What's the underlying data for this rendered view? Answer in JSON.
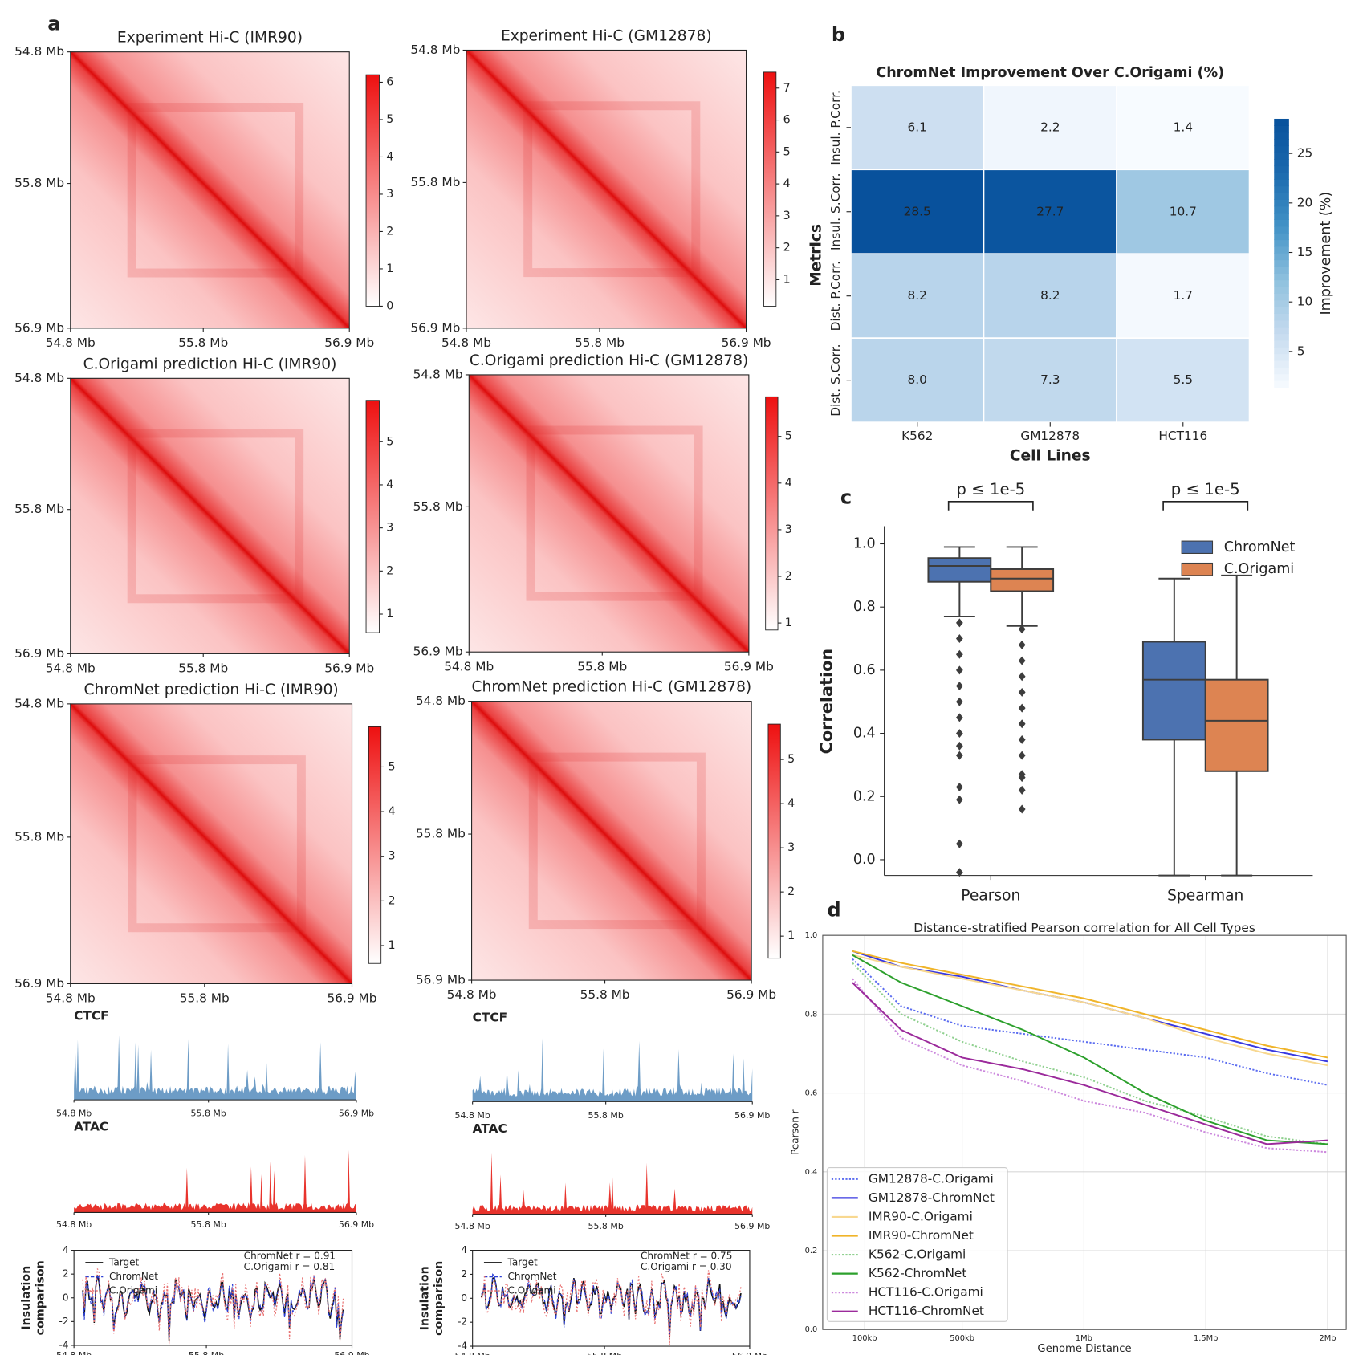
{
  "panel_labels": [
    "a",
    "b",
    "c",
    "d"
  ],
  "hic": {
    "lim": [
      54.8,
      56.9
    ],
    "ticks": [
      {
        "value": 54.8,
        "label": "54.8 Mb"
      },
      {
        "value": 55.8,
        "label": "55.8 Mb"
      },
      {
        "value": 56.9,
        "label": "56.9 Mb"
      }
    ],
    "panels": [
      {
        "title": "Experiment Hi-C (IMR90)",
        "cbar_lim": [
          0,
          6.2
        ],
        "cbar_ticks": [
          0,
          1,
          2,
          3,
          4,
          5,
          6
        ]
      },
      {
        "title": "Experiment Hi-C (GM12878)",
        "cbar_lim": [
          0.17,
          7.5
        ],
        "cbar_ticks": [
          1,
          2,
          3,
          4,
          5,
          6,
          7
        ]
      },
      {
        "title": "C.Origami prediction Hi-C (IMR90)",
        "cbar_lim": [
          0.57,
          5.96
        ],
        "cbar_ticks": [
          1,
          2,
          3,
          4,
          5
        ]
      },
      {
        "title": "C.Origami prediction Hi-C (GM12878)",
        "cbar_lim": [
          0.85,
          5.85
        ],
        "cbar_ticks": [
          1,
          2,
          3,
          4,
          5
        ]
      },
      {
        "title": "ChromNet prediction Hi-C (IMR90)",
        "cbar_lim": [
          0.6,
          5.9
        ],
        "cbar_ticks": [
          1,
          2,
          3,
          4,
          5
        ]
      },
      {
        "title": "ChromNet prediction Hi-C (GM12878)",
        "cbar_lim": [
          0.5,
          5.8
        ],
        "cbar_ticks": [
          1,
          2,
          3,
          4,
          5
        ]
      }
    ]
  },
  "tracks": {
    "names": [
      "CTCF",
      "ATAC"
    ],
    "colors": [
      "#6d9cc6",
      "#e8332c"
    ]
  },
  "insulation": {
    "ylabel": [
      "Insulation",
      "comparison"
    ],
    "ylim": [
      -4,
      4
    ],
    "yticks": [
      -4,
      -2,
      0,
      2,
      4
    ],
    "legend": [
      "Target",
      "ChromNet",
      "C.Origami"
    ],
    "colors": [
      "#111111",
      "#2b3fd6",
      "#e87070"
    ],
    "panels": [
      {
        "annotations": [
          "ChromNet r = 0.91",
          "C.Origami r = 0.81"
        ]
      },
      {
        "annotations": [
          "ChromNet r = 0.75",
          "C.Origami r = 0.30"
        ]
      }
    ]
  },
  "chart_data": [
    {
      "type": "heatmap",
      "title": "ChromNet Improvement Over C.Origami (%)",
      "xlabel": "Cell Lines",
      "ylabel": "Metrics",
      "colorbar_label": "Improvement (%)",
      "categories": [
        "K562",
        "GM12878",
        "HCT116"
      ],
      "rows": [
        "Insul. P.Corr.",
        "Insul. S.Corr.",
        "Dist. P.Corr.",
        "Dist. S.Corr."
      ],
      "values": [
        [
          6.1,
          2.2,
          1.4
        ],
        [
          28.5,
          27.7,
          10.7
        ],
        [
          8.2,
          8.2,
          1.7
        ],
        [
          8.0,
          7.3,
          5.5
        ]
      ],
      "value_labels": [
        [
          "6.1",
          "2.2",
          "1.4"
        ],
        [
          "28.5",
          "27.7",
          "10.7"
        ],
        [
          "8.2",
          "8.2",
          "1.7"
        ],
        [
          "8.0",
          "7.3",
          "5.5"
        ]
      ],
      "colormap": "Blues",
      "clim": [
        1.4,
        28.5
      ],
      "cticks": [
        5,
        10,
        15,
        20,
        25
      ]
    },
    {
      "type": "box",
      "ylabel": "Correlation",
      "categories": [
        "Pearson",
        "Spearman"
      ],
      "annotations": [
        "p ≤ 1e-5",
        "p ≤ 1e-5"
      ],
      "ylim": [
        -0.05,
        1.056
      ],
      "yticks": [
        {
          "value": 0,
          "label": "0.0"
        },
        0.2,
        0.4,
        0.6,
        0.8,
        {
          "value": 1,
          "label": "1.0"
        }
      ],
      "legend": "upper right",
      "series": [
        {
          "name": "ChromNet",
          "color": "#4c72b0",
          "boxes": [
            {
              "whislo": 0.77,
              "q1": 0.88,
              "med": 0.93,
              "q3": 0.955,
              "whishi": 0.99,
              "fliers": [
                0.75,
                0.7,
                0.65,
                0.6,
                0.55,
                0.5,
                0.45,
                0.4,
                0.36,
                0.33,
                0.23,
                0.19,
                0.05,
                -0.04
              ]
            },
            {
              "whislo": -0.05,
              "q1": 0.38,
              "med": 0.57,
              "q3": 0.69,
              "whishi": 0.89,
              "fliers": []
            }
          ]
        },
        {
          "name": "C.Origami",
          "color": "#dd8452",
          "boxes": [
            {
              "whislo": 0.74,
              "q1": 0.85,
              "med": 0.89,
              "q3": 0.92,
              "whishi": 0.99,
              "fliers": [
                0.73,
                0.68,
                0.63,
                0.58,
                0.53,
                0.48,
                0.43,
                0.38,
                0.33,
                0.27,
                0.26,
                0.22,
                0.16
              ]
            },
            {
              "whislo": -0.05,
              "q1": 0.28,
              "med": 0.44,
              "q3": 0.57,
              "whishi": 0.9,
              "fliers": []
            }
          ]
        }
      ]
    },
    {
      "type": "line",
      "title": "Distance-stratified Pearson correlation for All Cell Types",
      "xlabel": "Genome Distance",
      "ylabel": "Pearson r",
      "x": [
        0.05,
        0.25,
        0.5,
        0.75,
        1.0,
        1.25,
        1.5,
        1.75,
        2.0
      ],
      "xlim": [
        -0.072,
        2.076
      ],
      "xticks": [
        {
          "value": 0.1,
          "label": "100kb"
        },
        {
          "value": 0.5,
          "label": "500kb"
        },
        {
          "value": 1,
          "label": "1Mb"
        },
        {
          "value": 1.5,
          "label": "1.5Mb"
        },
        {
          "value": 2,
          "label": "2Mb"
        }
      ],
      "ylim": [
        0,
        1
      ],
      "yticks": [
        {
          "value": 0,
          "label": "0.0"
        },
        0.2,
        0.4,
        0.6,
        0.8,
        {
          "value": 1,
          "label": "1.0"
        }
      ],
      "grid": true,
      "legend": "lower left",
      "series": [
        {
          "name": "GM12878-C.Origami",
          "color": "#5b6cf0",
          "style": "dotted",
          "values": [
            0.94,
            0.82,
            0.77,
            0.75,
            0.73,
            0.71,
            0.69,
            0.65,
            0.62
          ]
        },
        {
          "name": "GM12878-ChromNet",
          "color": "#3838e0",
          "style": "solid",
          "values": [
            0.96,
            0.92,
            0.895,
            0.86,
            0.83,
            0.79,
            0.75,
            0.71,
            0.68
          ]
        },
        {
          "name": "IMR90-C.Origami",
          "color": "#f8d890",
          "style": "solid",
          "values": [
            0.95,
            0.92,
            0.89,
            0.86,
            0.83,
            0.79,
            0.74,
            0.7,
            0.67
          ]
        },
        {
          "name": "IMR90-ChromNet",
          "color": "#f0b429",
          "style": "solid",
          "values": [
            0.96,
            0.93,
            0.9,
            0.87,
            0.84,
            0.8,
            0.76,
            0.72,
            0.69
          ]
        },
        {
          "name": "K562-C.Origami",
          "color": "#8fd08f",
          "style": "dotted",
          "values": [
            0.93,
            0.8,
            0.73,
            0.68,
            0.64,
            0.58,
            0.54,
            0.49,
            0.47
          ]
        },
        {
          "name": "K562-ChromNet",
          "color": "#2ca02c",
          "style": "solid",
          "values": [
            0.95,
            0.88,
            0.82,
            0.76,
            0.69,
            0.6,
            0.53,
            0.48,
            0.47
          ]
        },
        {
          "name": "HCT116-C.Origami",
          "color": "#cc88dd",
          "style": "dotted",
          "values": [
            0.89,
            0.74,
            0.67,
            0.63,
            0.58,
            0.55,
            0.5,
            0.46,
            0.45
          ]
        },
        {
          "name": "HCT116-ChromNet",
          "color": "#9b2a9b",
          "style": "solid",
          "values": [
            0.88,
            0.76,
            0.69,
            0.66,
            0.62,
            0.57,
            0.52,
            0.47,
            0.48
          ]
        }
      ]
    }
  ]
}
